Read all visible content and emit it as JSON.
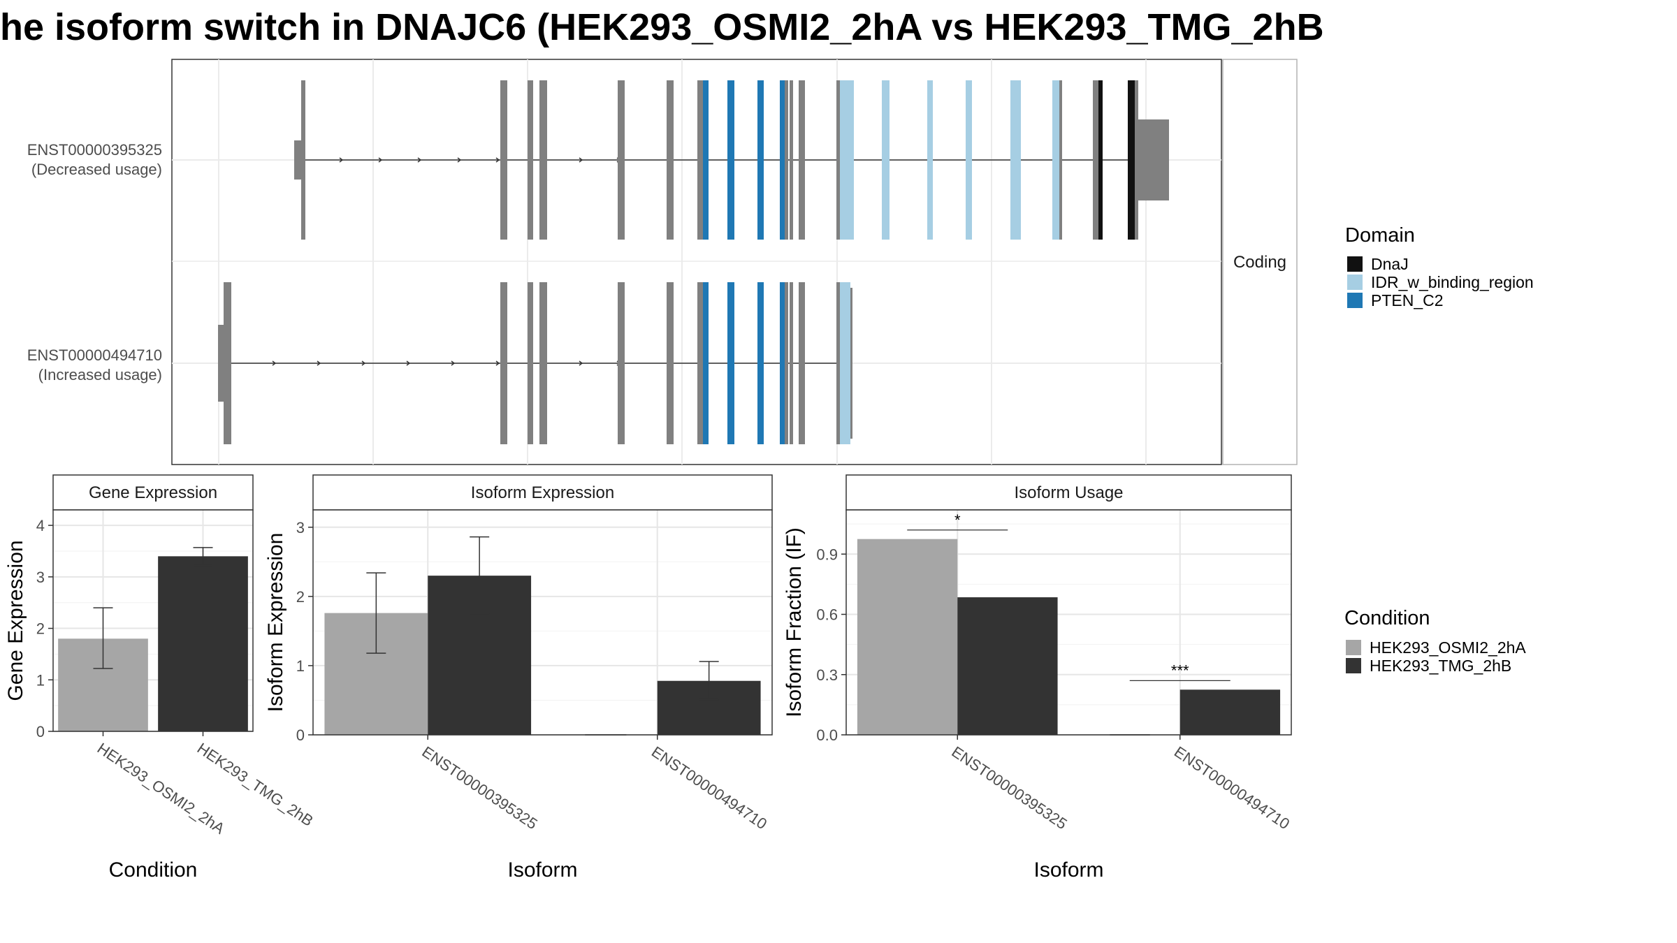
{
  "title": "he isoform switch in DNAJC6 (HEK293_OSMI2_2hA vs HEK293_TMG_2hB",
  "colors": {
    "condition_a": "#a6a6a6",
    "condition_b": "#333333",
    "exon_default": "#808080",
    "DnaJ": "#111111",
    "IDR_w_binding_region": "#a6cee3",
    "PTEN_C2": "#1f78b4"
  },
  "structure": {
    "facet_label": "Coding",
    "transcripts": [
      {
        "id": "ENST00000395325",
        "label_line1": "ENST00000395325",
        "label_line2": "(Decreased usage)"
      },
      {
        "id": "ENST00000494710",
        "label_line1": "ENST00000494710",
        "label_line2": "(Increased usage)"
      }
    ],
    "domain_legend": {
      "title": "Domain",
      "items": [
        {
          "name": "DnaJ",
          "color": "#111111"
        },
        {
          "name": "IDR_w_binding_region",
          "color": "#a6cee3"
        },
        {
          "name": "PTEN_C2",
          "color": "#1f78b4"
        }
      ]
    }
  },
  "condition_legend": {
    "title": "Condition",
    "items": [
      {
        "name": "HEK293_OSMI2_2hA",
        "color": "#a6a6a6"
      },
      {
        "name": "HEK293_TMG_2hB",
        "color": "#333333"
      }
    ]
  },
  "chart_data": [
    {
      "type": "bar",
      "title": "Gene Expression",
      "xlabel": "Condition",
      "ylabel": "Gene Expression",
      "categories": [
        "HEK293_OSMI2_2hA",
        "HEK293_TMG_2hB"
      ],
      "values": [
        1.8,
        3.4
      ],
      "error_low": [
        1.22,
        3.22
      ],
      "error_high": [
        2.4,
        3.57
      ],
      "ylim": [
        0,
        4.3
      ],
      "yticks": [
        0,
        1,
        2,
        3,
        4
      ],
      "grid": true
    },
    {
      "type": "bar",
      "title": "Isoform Expression",
      "xlabel": "Isoform",
      "ylabel": "Isoform Expression",
      "categories": [
        "ENST00000395325",
        "ENST00000494710"
      ],
      "series": [
        {
          "name": "HEK293_OSMI2_2hA",
          "values": [
            1.76,
            0.0
          ],
          "error_low": [
            1.18,
            0.0
          ],
          "error_high": [
            2.34,
            0.0
          ]
        },
        {
          "name": "HEK293_TMG_2hB",
          "values": [
            2.3,
            0.78
          ],
          "error_low": [
            1.75,
            0.51
          ],
          "error_high": [
            2.86,
            1.06
          ]
        }
      ],
      "ylim": [
        0,
        3.25
      ],
      "yticks": [
        0,
        1,
        2,
        3
      ],
      "grid": true
    },
    {
      "type": "bar",
      "title": "Isoform Usage",
      "xlabel": "Isoform",
      "ylabel": "Isoform Fraction (IF)",
      "categories": [
        "ENST00000395325",
        "ENST00000494710"
      ],
      "series": [
        {
          "name": "HEK293_OSMI2_2hA",
          "values": [
            0.975,
            0.0
          ]
        },
        {
          "name": "HEK293_TMG_2hB",
          "values": [
            0.685,
            0.225
          ]
        }
      ],
      "significance": [
        "*",
        "***"
      ],
      "ylim": [
        0,
        1.12
      ],
      "yticks": [
        0.0,
        0.3,
        0.6,
        0.9
      ],
      "ytick_labels": [
        "0.0",
        "0.3",
        "0.6",
        "0.9"
      ],
      "grid": true
    }
  ]
}
